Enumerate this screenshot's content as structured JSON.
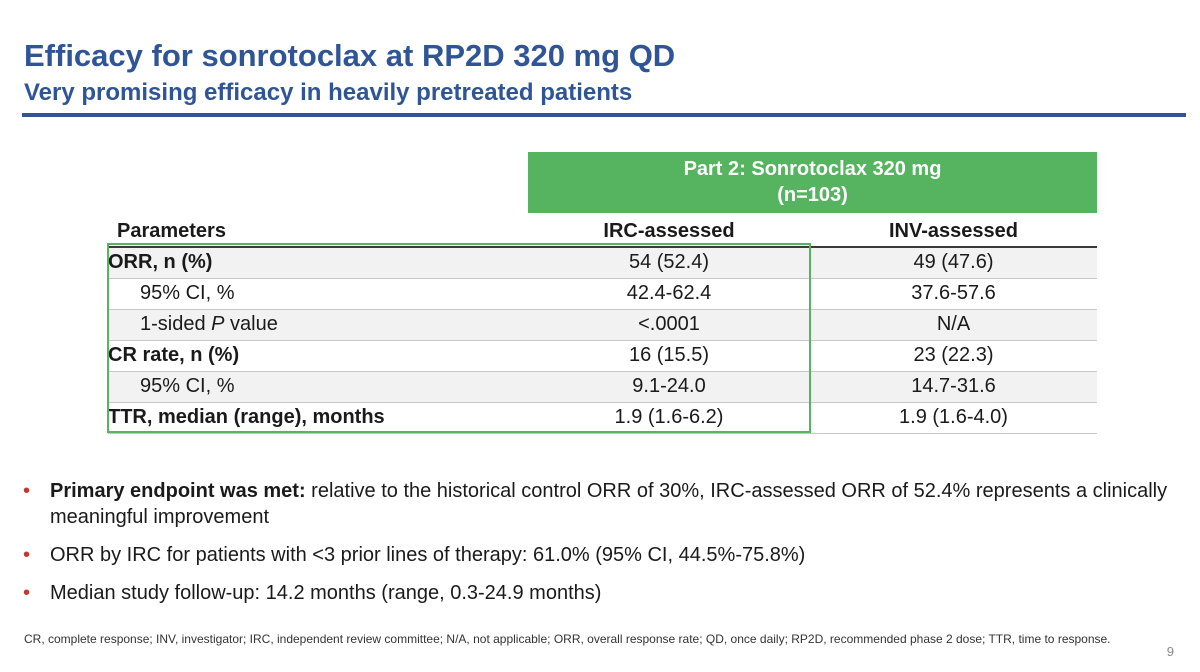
{
  "slide": {
    "title": "Efficacy for sonrotoclax at RP2D 320 mg QD",
    "subtitle": "Very promising efficacy in heavily pretreated patients",
    "page_number": "9"
  },
  "colors": {
    "title_blue": "#2f5597",
    "header_green": "#56b460",
    "bullet_red": "#c0392b"
  },
  "table": {
    "group_header_line1": "Part 2: Sonrotoclax 320 mg",
    "group_header_line2": "(n=103)",
    "columns": {
      "param": "Parameters",
      "irc": "IRC-assessed",
      "inv": "INV-assessed"
    },
    "rows": [
      {
        "param": "ORR, n (%)",
        "irc": "54 (52.4)",
        "inv": "49 (47.6)"
      },
      {
        "param": "95% CI, %",
        "irc": "42.4-62.4",
        "inv": "37.6-57.6"
      },
      {
        "param_prefix": "1-sided ",
        "param_italic": "P",
        "param_suffix": " value",
        "irc": "<.0001",
        "inv": "N/A"
      },
      {
        "param": "CR rate, n (%)",
        "irc": "16 (15.5)",
        "inv": "23 (22.3)"
      },
      {
        "param": "95% CI, %",
        "irc": "9.1-24.0",
        "inv": "14.7-31.6"
      },
      {
        "param": "TTR, median (range), months",
        "irc": "1.9 (1.6-6.2)",
        "inv": "1.9 (1.6-4.0)"
      }
    ]
  },
  "bullets": [
    {
      "lead": "Primary endpoint was met:",
      "text": " relative to the historical control ORR of 30%, IRC-assessed ORR of 52.4% represents a clinically meaningful improvement"
    },
    {
      "text": "ORR by IRC for patients with <3 prior lines of therapy: 61.0% (95% CI, 44.5%-75.8%)"
    },
    {
      "text": "Median study follow-up: 14.2 months (range, 0.3-24.9 months)"
    }
  ],
  "footnote": "CR, complete response; INV, investigator; IRC, independent review committee; N/A, not applicable; ORR, overall response rate; QD, once daily; RP2D, recommended phase 2 dose; TTR, time to response."
}
